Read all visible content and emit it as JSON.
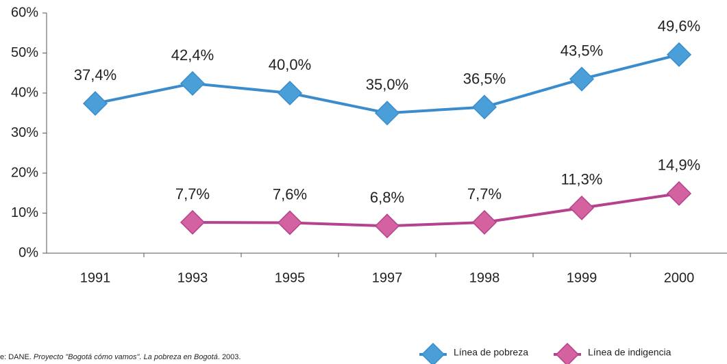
{
  "chart_data": {
    "type": "line",
    "categories": [
      "1991",
      "1993",
      "1995",
      "1997",
      "1998",
      "1999",
      "2000"
    ],
    "series": [
      {
        "name": "Línea de pobreza",
        "color": "#4a9fd8",
        "line_color": "#3a8ccc",
        "values": [
          37.4,
          42.4,
          40.0,
          35.0,
          36.5,
          43.5,
          49.6
        ],
        "value_labels": [
          "37,4%",
          "42,4%",
          "40,0%",
          "35,0%",
          "36,5%",
          "43,5%",
          "49,6%"
        ]
      },
      {
        "name": "Línea de indigencia",
        "color": "#d462a0",
        "line_color": "#b5428d",
        "values": [
          null,
          7.7,
          7.6,
          6.8,
          7.7,
          11.3,
          14.9
        ],
        "value_labels": [
          null,
          "7,7%",
          "7,6%",
          "6,8%",
          "7,7%",
          "11,3%",
          "14,9%"
        ]
      }
    ],
    "ylim": [
      0,
      60
    ],
    "yticks": [
      {
        "value": 0,
        "label": "0%"
      },
      {
        "value": 10,
        "label": "10%"
      },
      {
        "value": 20,
        "label": "20%"
      },
      {
        "value": 30,
        "label": "30%"
      },
      {
        "value": 40,
        "label": "40%"
      },
      {
        "value": 50,
        "label": "50%"
      },
      {
        "value": 60,
        "label": "60%"
      }
    ],
    "grid": false,
    "legend": "bottom-right",
    "source": {
      "prefix": "e: DANE. ",
      "italic": "Proyecto \"Bogotá cómo vamos\". La pobreza en Bogotá",
      "suffix": ". 2003."
    }
  }
}
